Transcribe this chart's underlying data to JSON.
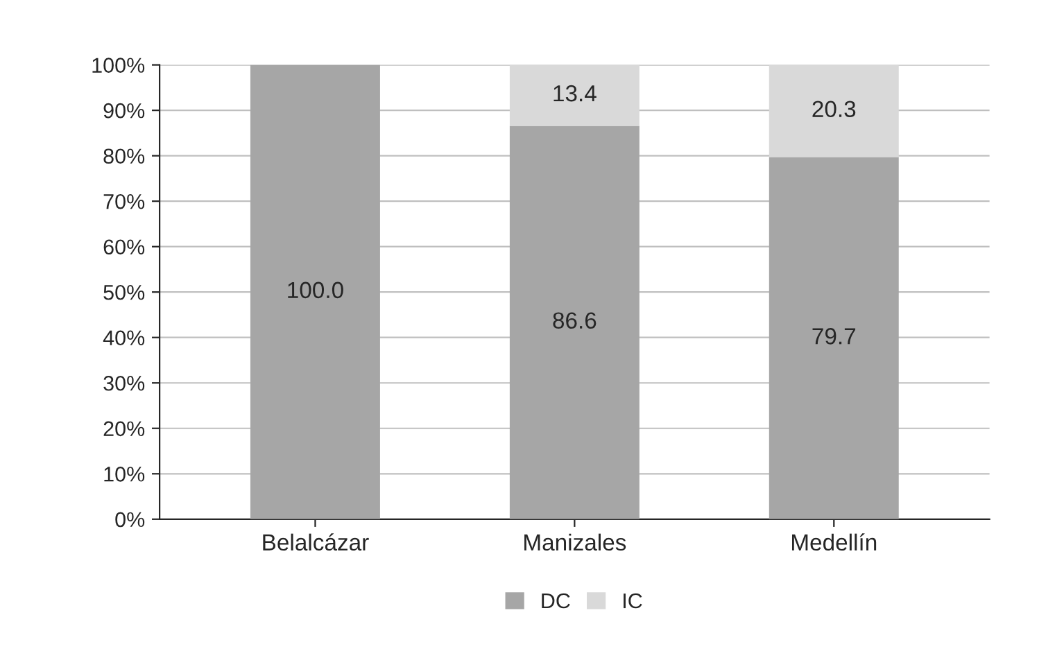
{
  "chart_data": {
    "type": "bar",
    "stacked": true,
    "categories": [
      "Belalcázar",
      "Manizales",
      "Medellín"
    ],
    "series": [
      {
        "name": "DC",
        "color": "#a6a6a6",
        "values": [
          100,
          86.6,
          79.7
        ],
        "value_labels": [
          "100.0",
          "86.6",
          "79.7"
        ]
      },
      {
        "name": "IC",
        "color": "#d9d9d9",
        "values": [
          null,
          13.4,
          20.3
        ],
        "value_labels": [
          null,
          "13.4",
          "20.3"
        ]
      }
    ],
    "ylim": [
      0,
      100
    ],
    "yticks": [
      {
        "value": 0,
        "label": "0%"
      },
      {
        "value": 10,
        "label": "10%"
      },
      {
        "value": 20,
        "label": "20%"
      },
      {
        "value": 30,
        "label": "30%"
      },
      {
        "value": 40,
        "label": "40%"
      },
      {
        "value": 50,
        "label": "50%"
      },
      {
        "value": 60,
        "label": "60%"
      },
      {
        "value": 70,
        "label": "70%"
      },
      {
        "value": 80,
        "label": "80%"
      },
      {
        "value": 90,
        "label": "90%"
      },
      {
        "value": 100,
        "label": "100%"
      }
    ],
    "grid": "y",
    "legend": "bottom"
  }
}
